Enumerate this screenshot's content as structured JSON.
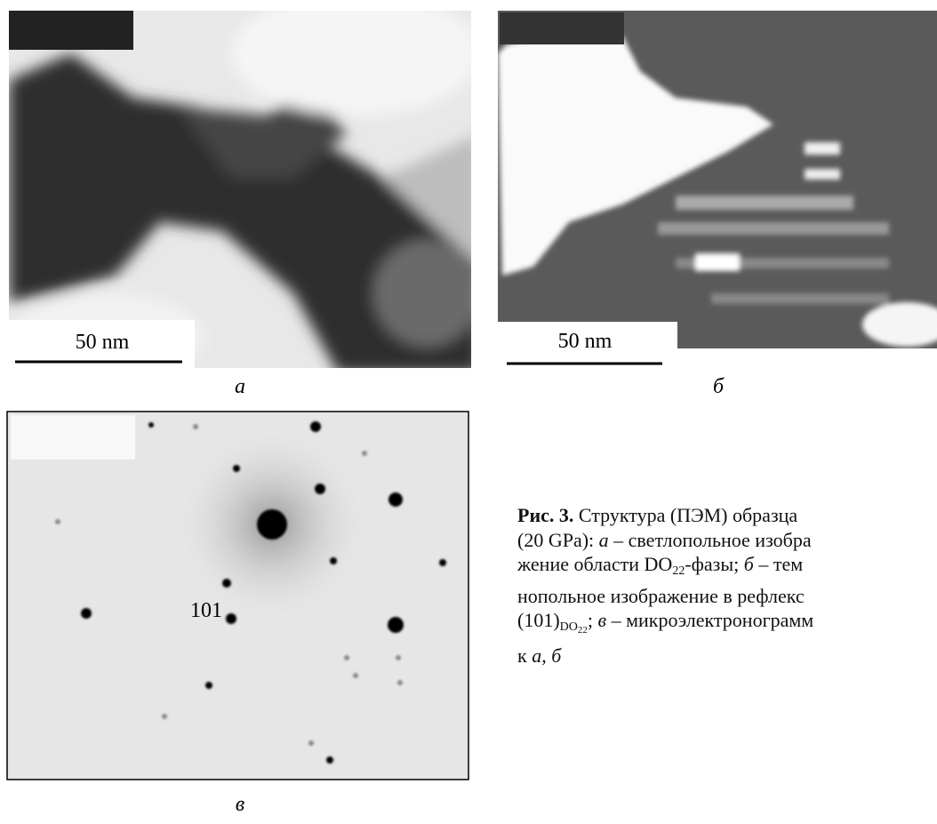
{
  "panels": [
    {
      "label": "а",
      "scale_bar": "50 nm"
    },
    {
      "label": "б",
      "scale_bar": "50 nm"
    },
    {
      "label": "в",
      "annotation": "101"
    }
  ],
  "caption": {
    "lines": [
      [
        "Рис. 3.",
        " Структура (ПЭМ) образца"
      ],
      [
        "(20 GPa): ",
        "а",
        " – светлопольное изобра"
      ],
      [
        "жение области DO",
        "22",
        "-фазы; ",
        "б",
        " – тем"
      ],
      [
        "нопольное изображение в рефлекс"
      ],
      [
        "(101)",
        "DO",
        "22",
        "; ",
        "в",
        " – микроэлектронограмм"
      ],
      [
        "к ",
        "а",
        ", ",
        "б"
      ]
    ]
  }
}
